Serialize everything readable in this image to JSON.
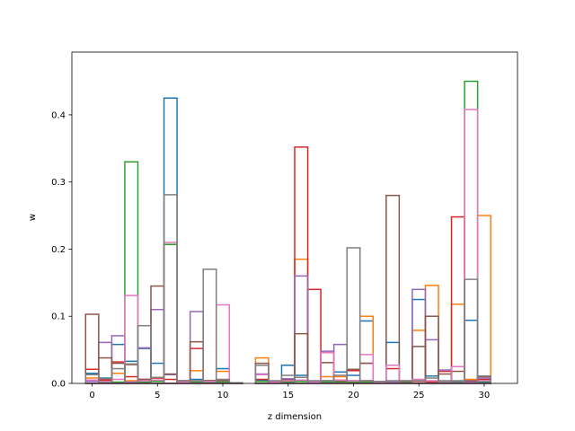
{
  "chart_data": {
    "type": "bar",
    "style": "stepfilled-outline histogram (unfilled, overlaid series)",
    "xlabel": "z dimension",
    "ylabel": "w",
    "xlim": [
      -1.55,
      32.55
    ],
    "ylim": [
      0,
      0.4935
    ],
    "xticks": [
      0,
      5,
      10,
      15,
      20,
      25,
      30
    ],
    "yticks": [
      0.0,
      0.1,
      0.2,
      0.3,
      0.4
    ],
    "x": [
      0,
      1,
      2,
      3,
      4,
      5,
      6,
      7,
      8,
      9,
      10,
      11,
      12,
      13,
      14,
      15,
      16,
      17,
      18,
      19,
      20,
      21,
      22,
      23,
      24,
      25,
      26,
      27,
      28,
      29,
      30
    ],
    "series": [
      {
        "color": "#1f77b4",
        "values": [
          0.015,
          0.008,
          0.058,
          0.033,
          0.052,
          0.03,
          0.425,
          0.003,
          0.006,
          0.004,
          0.022,
          0.001,
          0.0,
          0.005,
          0.002,
          0.027,
          0.012,
          0.002,
          0.004,
          0.017,
          0.012,
          0.093,
          0.002,
          0.061,
          0.003,
          0.125,
          0.011,
          0.002,
          0.003,
          0.094,
          0.002
        ]
      },
      {
        "color": "#ff7f0e",
        "values": [
          0.008,
          0.003,
          0.015,
          0.004,
          0.005,
          0.008,
          0.207,
          0.002,
          0.019,
          0.002,
          0.018,
          0.001,
          0.0,
          0.038,
          0.002,
          0.003,
          0.185,
          0.002,
          0.01,
          0.01,
          0.004,
          0.1,
          0.002,
          0.002,
          0.003,
          0.079,
          0.146,
          0.002,
          0.118,
          0.006,
          0.25
        ]
      },
      {
        "color": "#2ca02c",
        "values": [
          0.004,
          0.002,
          0.002,
          0.33,
          0.002,
          0.003,
          0.207,
          0.001,
          0.002,
          0.001,
          0.002,
          0.0,
          0.0,
          0.003,
          0.001,
          0.002,
          0.003,
          0.001,
          0.002,
          0.002,
          0.002,
          0.002,
          0.001,
          0.002,
          0.001,
          0.003,
          0.002,
          0.001,
          0.002,
          0.45,
          0.003
        ]
      },
      {
        "color": "#d62728",
        "values": [
          0.021,
          0.005,
          0.032,
          0.01,
          0.006,
          0.008,
          0.006,
          0.004,
          0.052,
          0.004,
          0.005,
          0.001,
          0.0,
          0.006,
          0.002,
          0.004,
          0.352,
          0.14,
          0.046,
          0.004,
          0.019,
          0.004,
          0.003,
          0.022,
          0.003,
          0.003,
          0.002,
          0.018,
          0.248,
          0.003,
          0.006
        ]
      },
      {
        "color": "#9467bd",
        "values": [
          0.003,
          0.061,
          0.071,
          0.002,
          0.053,
          0.11,
          0.013,
          0.003,
          0.107,
          0.003,
          0.005,
          0.001,
          0.0,
          0.014,
          0.002,
          0.007,
          0.16,
          0.002,
          0.048,
          0.058,
          0.004,
          0.03,
          0.002,
          0.002,
          0.003,
          0.14,
          0.065,
          0.02,
          0.003,
          0.002,
          0.008
        ]
      },
      {
        "color": "#8c564b",
        "values": [
          0.103,
          0.038,
          0.03,
          0.028,
          0.006,
          0.145,
          0.014,
          0.003,
          0.062,
          0.004,
          0.004,
          0.001,
          0.0,
          0.03,
          0.003,
          0.005,
          0.074,
          0.003,
          0.031,
          0.004,
          0.021,
          0.03,
          0.003,
          0.28,
          0.003,
          0.055,
          0.1,
          0.014,
          0.018,
          0.004,
          0.01
        ]
      },
      {
        "color": "#e377c2",
        "values": [
          0.005,
          0.003,
          0.006,
          0.131,
          0.004,
          0.005,
          0.21,
          0.002,
          0.004,
          0.003,
          0.117,
          0.001,
          0.0,
          0.013,
          0.002,
          0.004,
          0.005,
          0.002,
          0.046,
          0.005,
          0.004,
          0.043,
          0.002,
          0.027,
          0.004,
          0.006,
          0.004,
          0.003,
          0.025,
          0.408,
          0.004
        ]
      },
      {
        "color": "#7f7f7f",
        "values": [
          0.013,
          0.007,
          0.022,
          0.029,
          0.086,
          0.009,
          0.281,
          0.004,
          0.004,
          0.17,
          0.006,
          0.001,
          0.0,
          0.027,
          0.004,
          0.012,
          0.009,
          0.004,
          0.004,
          0.012,
          0.202,
          0.004,
          0.003,
          0.004,
          0.004,
          0.004,
          0.008,
          0.004,
          0.004,
          0.155,
          0.011
        ]
      }
    ]
  }
}
